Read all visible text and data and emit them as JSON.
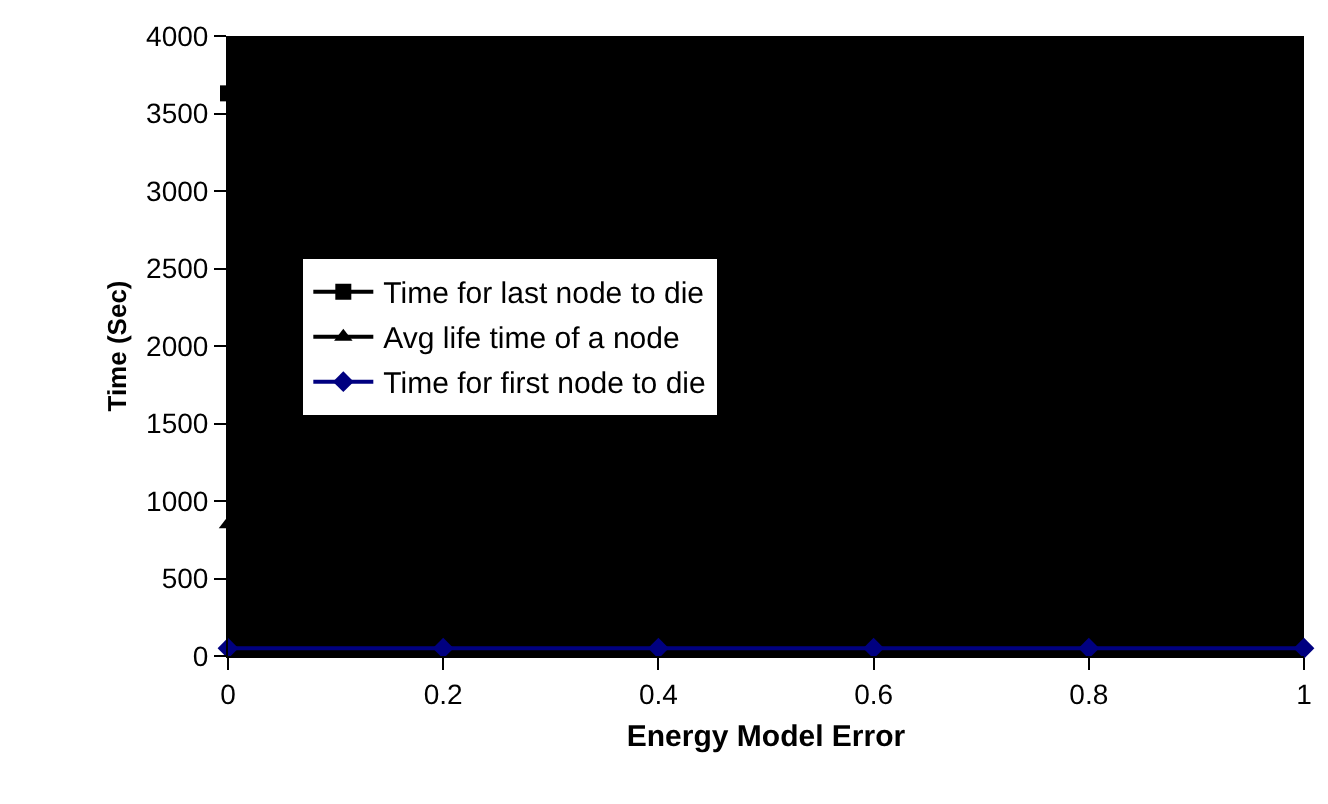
{
  "chart_data": {
    "type": "line",
    "xlabel": "Energy Model Error",
    "ylabel": "Time (Sec)",
    "x": [
      0,
      0.2,
      0.4,
      0.6,
      0.8,
      1
    ],
    "series": [
      {
        "name": "Time for last node to die",
        "color": "#000000",
        "marker": "square",
        "values": [
          3630,
          null,
          null,
          null,
          null,
          null
        ]
      },
      {
        "name": "Avg life time of a node",
        "color": "#000000",
        "marker": "triangle",
        "values": [
          850,
          null,
          null,
          null,
          null,
          null
        ]
      },
      {
        "name": "Time for first node to die",
        "color": "#000080",
        "marker": "diamond",
        "values": [
          50,
          50,
          50,
          50,
          50,
          50
        ]
      }
    ],
    "xlim": [
      0,
      1
    ],
    "xticks": [
      0,
      {
        "value": 0.2,
        "label": "0.2"
      },
      {
        "value": 0.4,
        "label": "0.4"
      },
      {
        "value": 0.6,
        "label": "0.6"
      },
      {
        "value": 0.8,
        "label": "0.8"
      },
      1
    ],
    "ylim": [
      0,
      4000
    ],
    "yticks": [
      0,
      500,
      1000,
      1500,
      2000,
      2500,
      3000,
      3500,
      4000
    ],
    "grid": false,
    "legend": "left"
  }
}
